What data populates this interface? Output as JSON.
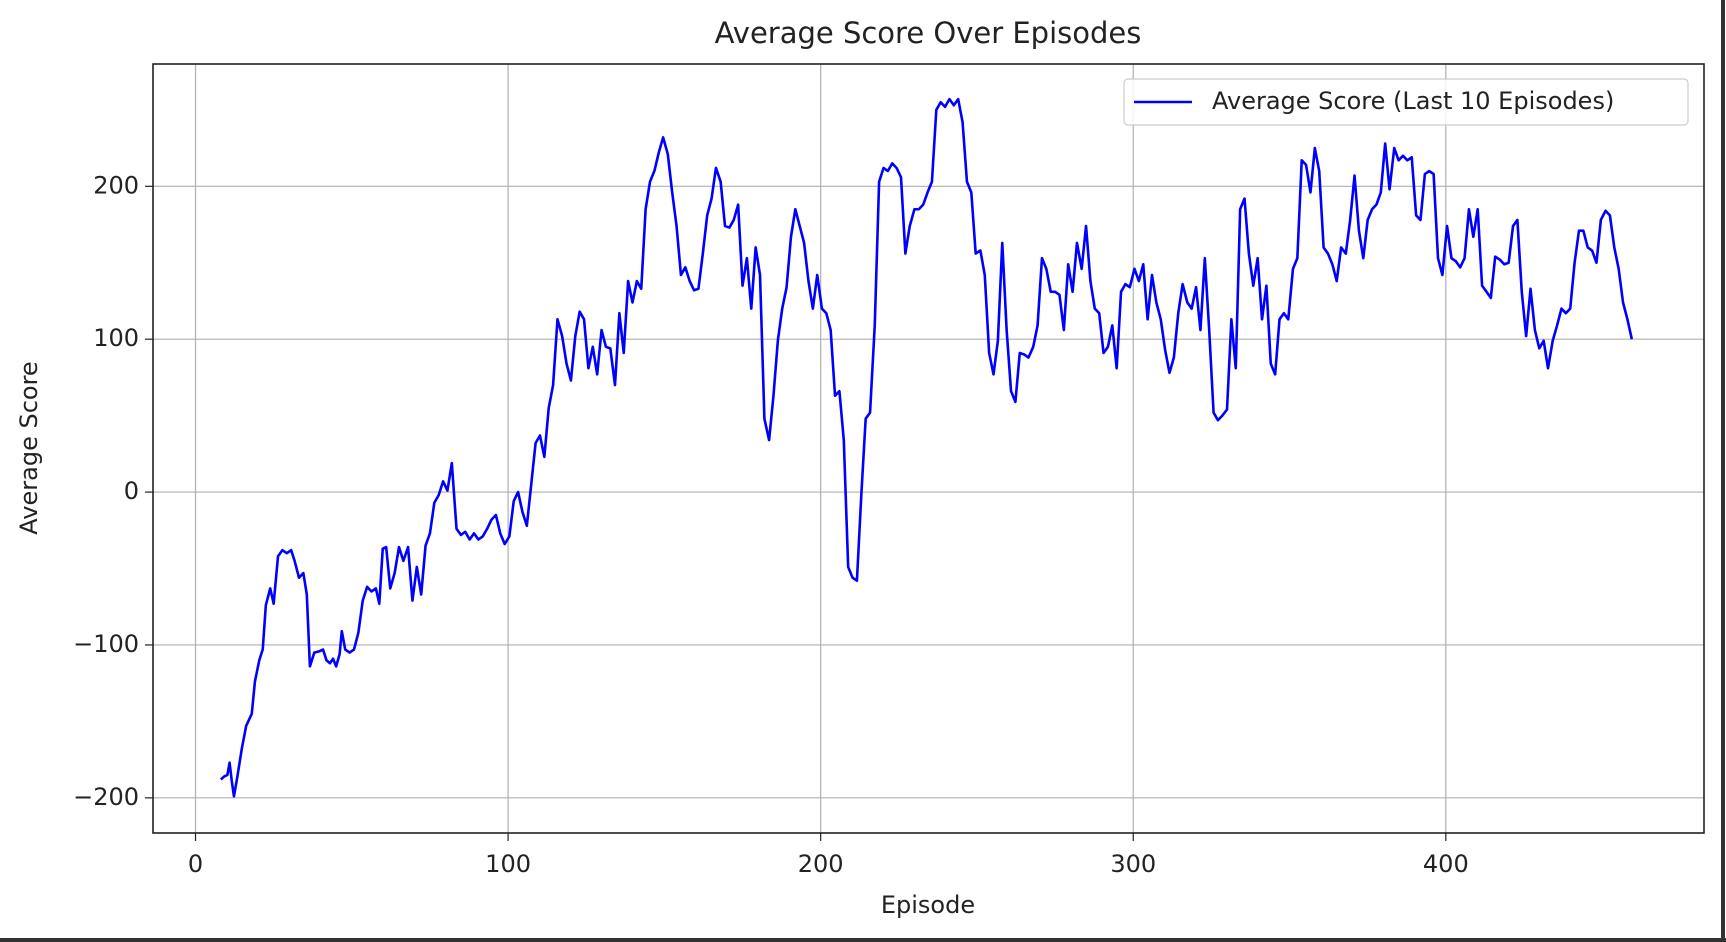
{
  "chart_data": {
    "type": "line",
    "title": "Average Score Over Episodes",
    "x_label": "Episode",
    "y_label": "Average Score",
    "xlim": [
      -13.6,
      482.6
    ],
    "ylim": [
      -223,
      280
    ],
    "xticks": [
      0,
      100,
      200,
      300,
      400
    ],
    "yticks": [
      {
        "value": -200,
        "label": "−200"
      },
      {
        "value": -100,
        "label": "−100"
      },
      0,
      100,
      200
    ],
    "grid": true,
    "legend": "upper right",
    "x": [
      8.1,
      9.2,
      10.2,
      10.9,
      11.6,
      12.3,
      13.4,
      14.8,
      16.2,
      18,
      19,
      20.4,
      21.5,
      22.5,
      23.9,
      25,
      26.4,
      27.8,
      29.2,
      30.6,
      31.7,
      33.1,
      34.5,
      35.6,
      36.6,
      38,
      39.8,
      40.8,
      41.9,
      43,
      44,
      45,
      46.1,
      46.8,
      47.9,
      49.3,
      50.7,
      52.1,
      53.5,
      54.9,
      56.3,
      57.7,
      58.8,
      59.9,
      61,
      62.3,
      63.7,
      65.1,
      66.5,
      68,
      69.4,
      70.8,
      72.2,
      73.6,
      75,
      76.4,
      77.8,
      79.2,
      80.6,
      82,
      83.5,
      84.9,
      86.3,
      87.7,
      89.1,
      90.5,
      91.9,
      93.3,
      94.7,
      96.1,
      97.5,
      98.9,
      100.4,
      101.8,
      103.2,
      104.6,
      106,
      107.4,
      108.8,
      110.2,
      111.6,
      113,
      114.4,
      115.8,
      117.3,
      118.7,
      120.1,
      121.5,
      122.9,
      124.3,
      125.7,
      127.1,
      128.5,
      129.9,
      131.3,
      132.7,
      134.2,
      135.6,
      137,
      138.4,
      139.8,
      141.2,
      142.6,
      144,
      145.4,
      146.8,
      148.2,
      149.6,
      151.1,
      152.5,
      153.9,
      155.3,
      156.7,
      158.1,
      159.5,
      160.9,
      162.3,
      163.7,
      165.1,
      166.5,
      168,
      169.4,
      170.8,
      172.2,
      173.6,
      175,
      176.4,
      177.8,
      179.2,
      180.6,
      182,
      183.5,
      184.9,
      186.3,
      187.7,
      189.1,
      190.5,
      191.9,
      193.3,
      194.7,
      196.1,
      197.5,
      198.9,
      200.4,
      201.8,
      203.2,
      204.6,
      206,
      207.4,
      208.8,
      210.2,
      211.6,
      213,
      214.4,
      215.8,
      217.3,
      218.7,
      220.1,
      221.5,
      222.9,
      224.3,
      225.7,
      227.1,
      228.5,
      230,
      231.4,
      232.8,
      234.2,
      235.6,
      237,
      238.4,
      239.8,
      241.2,
      242.6,
      244,
      245.4,
      246.8,
      248.2,
      249.6,
      251.1,
      252.5,
      253.9,
      255.3,
      256.7,
      258.1,
      259.5,
      260.9,
      262.3,
      263.7,
      265.1,
      266.5,
      268,
      269.4,
      270.8,
      272.2,
      273.6,
      275,
      276.4,
      277.8,
      279.2,
      280.6,
      282,
      283.5,
      284.9,
      286.3,
      287.7,
      289.1,
      290.5,
      291.9,
      293.3,
      294.7,
      296.1,
      297.5,
      298.9,
      300.4,
      301.8,
      303.2,
      304.6,
      306,
      307.4,
      308.8,
      310.2,
      311.6,
      313,
      314.4,
      315.8,
      317.3,
      318.7,
      320.1,
      321.5,
      322.9,
      324.3,
      325.7,
      327.1,
      328.5,
      330,
      331.4,
      332.8,
      334.2,
      335.6,
      337,
      338.4,
      339.8,
      341.2,
      342.6,
      344,
      345.4,
      346.8,
      348.2,
      349.6,
      351.1,
      352.5,
      353.9,
      355.3,
      356.7,
      358.1,
      359.5,
      360.9,
      362.3,
      363.7,
      365.1,
      366.5,
      368,
      369.4,
      370.8,
      372.2,
      373.6,
      375,
      376.4,
      377.8,
      379.2,
      380.6,
      382,
      383.5,
      384.9,
      386.3,
      387.7,
      389.1,
      390.5,
      391.9,
      393.3,
      394.7,
      396.1,
      397.5,
      398.9,
      400.4,
      401.8,
      403.2,
      404.6,
      406,
      407.4,
      408.8,
      410.2,
      411.6,
      413,
      414.4,
      415.8,
      417.3,
      418.7,
      420.1,
      421.5,
      422.9,
      424.3,
      425.7,
      427.1,
      428.5,
      429.9,
      431.3,
      432.7,
      434.2,
      435.6,
      437,
      438.4,
      439.8,
      441.2,
      442.6,
      444,
      445.4,
      446.8,
      448.2,
      449.6,
      451.1,
      452.5,
      453.9,
      455.3,
      456.7,
      458.1,
      459.5
    ],
    "series": [
      {
        "name": "Average Score (Last 10 Episodes)",
        "color": "#0000ff",
        "values": [
          -188,
          -186,
          -185,
          -177,
          -189,
          -199,
          -186,
          -168,
          -153,
          -145,
          -124,
          -110,
          -103,
          -74,
          -63,
          -73,
          -42,
          -38,
          -40,
          -38,
          -45,
          -56,
          -53,
          -67,
          -114,
          -105,
          -104,
          -103,
          -110,
          -112,
          -109,
          -114,
          -106,
          -91,
          -103,
          -105,
          -103,
          -92,
          -71,
          -62,
          -65,
          -63,
          -73,
          -37,
          -36,
          -63,
          -53,
          -36,
          -45,
          -36,
          -71,
          -49,
          -67,
          -35,
          -27,
          -7,
          -2,
          7,
          1,
          19,
          -24,
          -28,
          -26,
          -31,
          -27,
          -31,
          -29,
          -24,
          -18,
          -15,
          -27,
          -34,
          -29,
          -6,
          0,
          -13,
          -22,
          5,
          32,
          37,
          23,
          55,
          70,
          113,
          102,
          84,
          73,
          102,
          118,
          113,
          81,
          95,
          77,
          106,
          95,
          94,
          70,
          117,
          91,
          138,
          124,
          138,
          133,
          185,
          203,
          210,
          222,
          232,
          221,
          196,
          174,
          142,
          147,
          138,
          132,
          133,
          156,
          181,
          192,
          212,
          203,
          174,
          173,
          178,
          188,
          135,
          153,
          120,
          160,
          142,
          48,
          34,
          63,
          99,
          120,
          134,
          167,
          185,
          174,
          163,
          138,
          120,
          142,
          120,
          117,
          106,
          63,
          66,
          34,
          -49,
          -56,
          -58,
          -2,
          48,
          52,
          109,
          203,
          212,
          210,
          215,
          212,
          206,
          156,
          174,
          185,
          185,
          188,
          196,
          203,
          250,
          255,
          252,
          257,
          253,
          257,
          242,
          203,
          196,
          156,
          158,
          142,
          91,
          77,
          99,
          163,
          106,
          66,
          59,
          91,
          90,
          88,
          95,
          109,
          153,
          146,
          131,
          131,
          129,
          106,
          149,
          131,
          163,
          146,
          174,
          138,
          120,
          117,
          91,
          95,
          109,
          81,
          131,
          136,
          134,
          146,
          138,
          149,
          113,
          142,
          124,
          113,
          93,
          78,
          88,
          117,
          136,
          124,
          120,
          134,
          106,
          153,
          106,
          52,
          47,
          50,
          54,
          113,
          81,
          185,
          192,
          156,
          135,
          153,
          113,
          135,
          84,
          77,
          113,
          117,
          113,
          146,
          153,
          217,
          214,
          196,
          225,
          210,
          160,
          156,
          149,
          138,
          160,
          156,
          178,
          207,
          171,
          153,
          178,
          185,
          188,
          196,
          228,
          198,
          225,
          217,
          220,
          217,
          219,
          181,
          178,
          208,
          210,
          208,
          153,
          142,
          174,
          153,
          151,
          147,
          153,
          185,
          167,
          185,
          135,
          131,
          127,
          154,
          152,
          149,
          150,
          174,
          178,
          131,
          102,
          133,
          106,
          94,
          99,
          81,
          99,
          109,
          120,
          117,
          120,
          150,
          171,
          171,
          160,
          158,
          150,
          178,
          184,
          181,
          160,
          146,
          124,
          113,
          100
        ]
      }
    ]
  }
}
